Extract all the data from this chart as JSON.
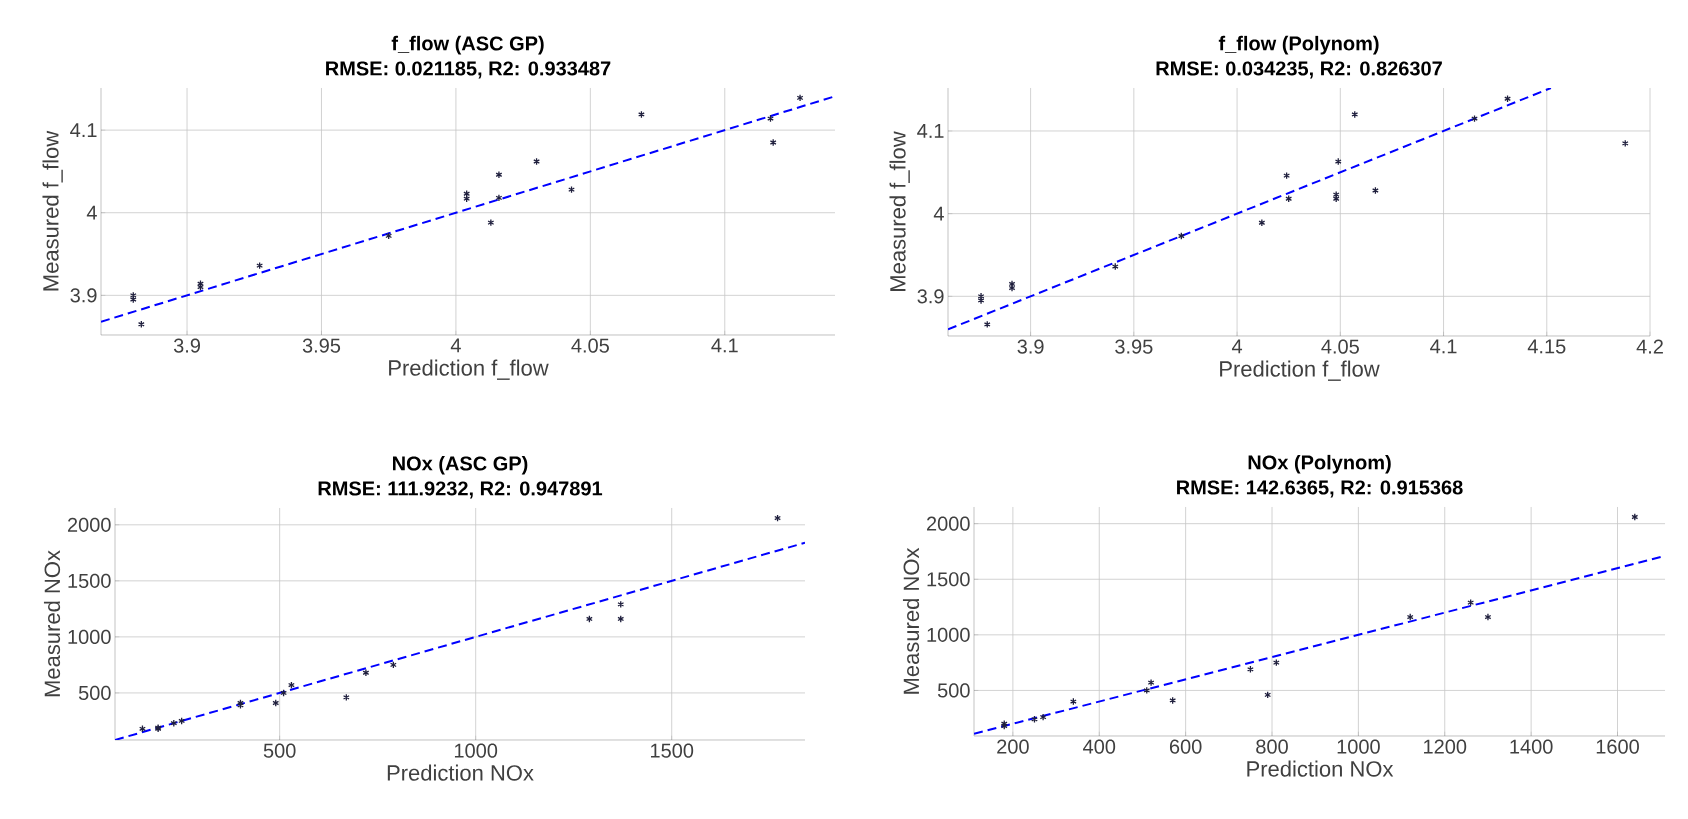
{
  "chart_data": [
    {
      "type": "scatter",
      "title": "f_flow (ASC GP)",
      "subtitle": "RMSE: 0.021185, R2: 0.933487",
      "xlabel": "Prediction f_flow",
      "ylabel": "Measured f_flow",
      "xlim": [
        3.868,
        4.141
      ],
      "ylim": [
        3.852,
        4.151
      ],
      "xticks": [
        3.9,
        3.95,
        4,
        4.05,
        4.1
      ],
      "yticks": [
        3.9,
        4,
        4.1
      ],
      "grid": true,
      "series": [
        {
          "type": "scatter",
          "marker": "cross",
          "color": "#1f1f3d",
          "x": [
            3.88,
            3.88,
            3.883,
            3.905,
            3.905,
            3.927,
            3.975,
            4.004,
            4.004,
            4.013,
            4.016,
            4.016,
            4.03,
            4.043,
            4.069,
            4.117,
            4.118,
            4.128
          ],
          "values": [
            3.9,
            3.895,
            3.865,
            3.914,
            3.91,
            3.936,
            3.972,
            4.023,
            4.017,
            3.988,
            4.046,
            4.018,
            4.062,
            4.028,
            4.119,
            4.114,
            4.085,
            4.139
          ]
        },
        {
          "type": "line",
          "line_style": "dashed",
          "color": "#0000ff",
          "x": [
            3.868,
            4.141
          ],
          "values": [
            3.868,
            4.141
          ]
        }
      ]
    },
    {
      "type": "scatter",
      "title": "f_flow (Polynom)",
      "subtitle": "RMSE: 0.034235, R2: 0.826307",
      "xlabel": "Prediction f_flow",
      "ylabel": "Measured f_flow",
      "xlim": [
        3.86,
        4.2
      ],
      "ylim": [
        3.852,
        4.152
      ],
      "xticks": [
        3.9,
        3.95,
        4,
        4.05,
        4.1,
        4.15,
        4.2
      ],
      "yticks": [
        3.9,
        4,
        4.1
      ],
      "grid": true,
      "series": [
        {
          "type": "scatter",
          "marker": "cross",
          "color": "#1f1f3d",
          "x": [
            3.876,
            3.876,
            3.879,
            3.891,
            3.891,
            3.941,
            3.973,
            4.012,
            4.024,
            4.025,
            4.048,
            4.048,
            4.049,
            4.057,
            4.067,
            4.115,
            4.131,
            4.188
          ],
          "values": [
            3.9,
            3.895,
            3.866,
            3.915,
            3.91,
            3.936,
            3.973,
            3.989,
            4.046,
            4.018,
            4.023,
            4.018,
            4.063,
            4.12,
            4.028,
            4.115,
            4.139,
            4.085
          ]
        },
        {
          "type": "line",
          "line_style": "dashed",
          "color": "#0000ff",
          "x": [
            3.86,
            4.152
          ],
          "values": [
            3.86,
            4.152
          ]
        }
      ]
    },
    {
      "type": "scatter",
      "title": "NOx (ASC GP)",
      "subtitle": "RMSE: 111.9232, R2: 0.947891",
      "xlabel": "Prediction NOx",
      "ylabel": "Measured NOx",
      "xlim": [
        80,
        1840
      ],
      "ylim": [
        80,
        2150
      ],
      "xticks": [
        500,
        1000,
        1500
      ],
      "yticks": [
        500,
        1000,
        1500,
        2000
      ],
      "grid": true,
      "series": [
        {
          "type": "scatter",
          "marker": "cross",
          "color": "#1f1f3d",
          "x": [
            150,
            190,
            190,
            230,
            250,
            400,
            400,
            490,
            510,
            530,
            670,
            720,
            790,
            1290,
            1370,
            1370,
            1770
          ],
          "values": [
            180,
            190,
            180,
            230,
            250,
            410,
            390,
            410,
            500,
            570,
            460,
            680,
            750,
            1160,
            1290,
            1160,
            2060
          ]
        },
        {
          "type": "line",
          "line_style": "dashed",
          "color": "#0000ff",
          "x": [
            80,
            1840
          ],
          "values": [
            80,
            1840
          ]
        }
      ]
    },
    {
      "type": "scatter",
      "title": "NOx (Polynom)",
      "subtitle": "RMSE: 142.6365, R2: 0.915368",
      "xlabel": "Prediction NOx",
      "ylabel": "Measured NOx",
      "xlim": [
        110,
        1710
      ],
      "ylim": [
        90,
        2150
      ],
      "xticks": [
        200,
        400,
        600,
        800,
        1000,
        1200,
        1400,
        1600
      ],
      "yticks": [
        500,
        1000,
        1500,
        2000
      ],
      "grid": true,
      "series": [
        {
          "type": "scatter",
          "marker": "cross",
          "color": "#1f1f3d",
          "x": [
            180,
            180,
            250,
            270,
            340,
            510,
            520,
            570,
            750,
            790,
            810,
            1120,
            1260,
            1300,
            1640
          ],
          "values": [
            200,
            180,
            240,
            260,
            400,
            500,
            570,
            410,
            690,
            460,
            750,
            1160,
            1290,
            1160,
            2060
          ]
        },
        {
          "type": "line",
          "line_style": "dashed",
          "color": "#0000ff",
          "x": [
            110,
            1710
          ],
          "values": [
            110,
            1710
          ]
        }
      ]
    }
  ]
}
